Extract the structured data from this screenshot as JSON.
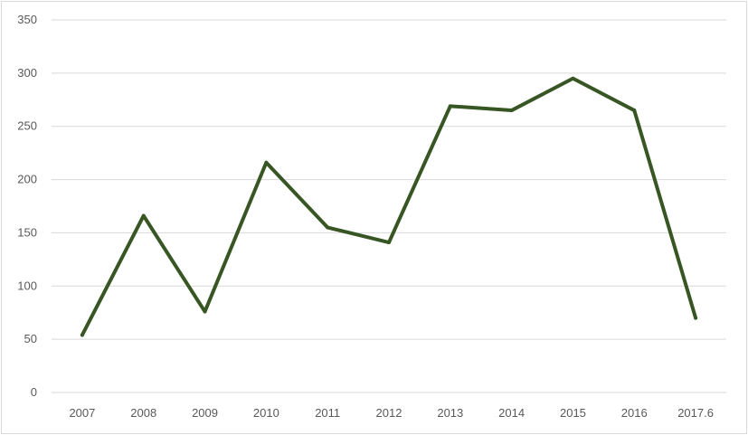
{
  "chart_data": {
    "type": "line",
    "title": "",
    "xlabel": "",
    "ylabel": "",
    "categories": [
      "2007",
      "2008",
      "2009",
      "2010",
      "2011",
      "2012",
      "2013",
      "2014",
      "2015",
      "2016",
      "2017.6"
    ],
    "series": [
      {
        "values": [
          54,
          166,
          76,
          216,
          155,
          141,
          269,
          265,
          295,
          265,
          70
        ],
        "color": "#375623"
      }
    ],
    "ylim": [
      0,
      350
    ],
    "yticks": [
      "0",
      "50",
      "100",
      "150",
      "200",
      "250",
      "300",
      "350"
    ],
    "grid": true,
    "gridColor": "#d9d9d9",
    "legend": "none"
  }
}
